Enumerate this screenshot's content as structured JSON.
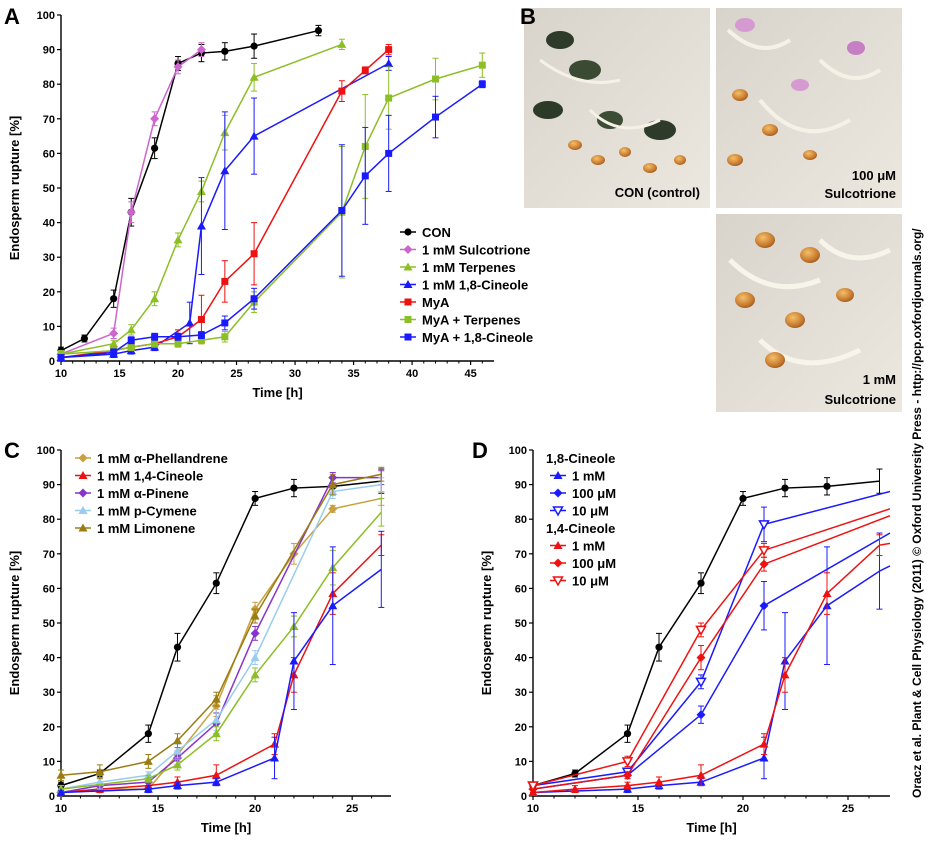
{
  "credit": "Oracz et al. Plant & Cell Physiology (2011) © Oxford University Press - http://pcp.oxfordjournals.org/",
  "panel_b": {
    "label": "B",
    "photos": [
      {
        "caption": "CON (control)"
      },
      {
        "caption": "100 μM",
        "caption2": "Sulcotrione"
      },
      {
        "caption": "1 mM",
        "caption2": "Sulcotrione"
      }
    ]
  },
  "chart_data": [
    {
      "panel": "A",
      "type": "line",
      "xlabel": "Time [h]",
      "ylabel": "Endosperm rupture [%]",
      "xlim": [
        10,
        47
      ],
      "ylim": [
        0,
        100
      ],
      "xticks": [
        10,
        15,
        20,
        25,
        30,
        35,
        40,
        45
      ],
      "yticks": [
        0,
        10,
        20,
        30,
        40,
        50,
        60,
        70,
        80,
        90,
        100
      ],
      "legend_position": "bottom-right",
      "series": [
        {
          "name": "CON",
          "color": "#000000",
          "marker": "circle",
          "x": [
            10,
            12,
            14.5,
            16,
            18,
            20,
            22,
            24,
            26.5,
            32
          ],
          "y": [
            3,
            6.5,
            18,
            43,
            61.5,
            86,
            89,
            89.5,
            91,
            95.5
          ],
          "err": [
            1,
            1,
            2.5,
            4,
            3,
            2,
            2.5,
            2.5,
            3.5,
            1.5
          ]
        },
        {
          "name": "1 mM Sulcotrione",
          "color": "#cc66cc",
          "marker": "diamond",
          "x": [
            10,
            14.5,
            16,
            18,
            20,
            22
          ],
          "y": [
            2,
            8,
            43,
            70,
            85,
            90
          ],
          "err": [
            1,
            1.5,
            3,
            2,
            2,
            2
          ]
        },
        {
          "name": "1 mM Terpenes",
          "color": "#8cbf26",
          "marker": "triangle",
          "x": [
            10,
            14.5,
            16,
            18,
            20,
            22,
            24,
            26.5,
            34
          ],
          "y": [
            2,
            5,
            9,
            18,
            35,
            49,
            66,
            82,
            91.5
          ],
          "err": [
            1,
            1,
            1.5,
            2,
            2,
            3,
            5,
            4,
            1.5
          ]
        },
        {
          "name": "1 mM 1,8-Cineole",
          "color": "#1a1aff",
          "marker": "triangle",
          "x": [
            10,
            14.5,
            16,
            18,
            21,
            22,
            24,
            26.5,
            38
          ],
          "y": [
            1,
            2,
            3,
            4,
            11,
            39,
            55,
            65,
            86
          ],
          "err": [
            0.5,
            1,
            1,
            1,
            6,
            14,
            17,
            11,
            2
          ]
        },
        {
          "name": "MyA",
          "color": "#ee1111",
          "marker": "square",
          "x": [
            10,
            14.5,
            16,
            18,
            20,
            22,
            24,
            26.5,
            34,
            36,
            38
          ],
          "y": [
            1,
            3,
            4,
            5,
            7,
            12,
            23,
            31,
            78,
            84,
            90
          ],
          "err": [
            0.5,
            1,
            1,
            1,
            2,
            7,
            6,
            9,
            3,
            1,
            1.5
          ]
        },
        {
          "name": "MyA + Terpenes",
          "color": "#8cbf26",
          "marker": "square",
          "x": [
            10,
            14.5,
            16,
            18,
            20,
            22,
            24,
            26.5,
            34,
            36,
            38,
            42,
            46
          ],
          "y": [
            2,
            3,
            4,
            5,
            5,
            6,
            7,
            17,
            43,
            62,
            76,
            81.5,
            85.5
          ],
          "err": [
            0.5,
            1,
            1,
            1,
            1,
            1,
            1.5,
            3,
            19,
            15,
            9,
            6,
            3.5
          ]
        },
        {
          "name": "MyA + 1,8-Cineole",
          "color": "#1a1aff",
          "marker": "square",
          "x": [
            10,
            14.5,
            16,
            18,
            20,
            22,
            24,
            26.5,
            34,
            36,
            38,
            42,
            46
          ],
          "y": [
            1,
            2.5,
            6,
            7,
            7,
            7.5,
            11,
            18,
            43.5,
            53.5,
            60,
            70.5,
            80
          ],
          "err": [
            0.5,
            1,
            1,
            1,
            1,
            1,
            2,
            3,
            19,
            14,
            11,
            6,
            1
          ]
        }
      ]
    },
    {
      "panel": "C",
      "type": "line",
      "xlabel": "Time [h]",
      "ylabel": "Endosperm rupture [%]",
      "xlim": [
        10,
        27
      ],
      "ylim": [
        0,
        100
      ],
      "xticks": [
        10,
        15,
        20,
        25
      ],
      "yticks": [
        0,
        10,
        20,
        30,
        40,
        50,
        60,
        70,
        80,
        90,
        100
      ],
      "legend_position": "top-left",
      "series": [
        {
          "name": "",
          "color": "#000000",
          "marker": "circle",
          "x": [
            10,
            12,
            14.5,
            16,
            18,
            20,
            22,
            24,
            26.5
          ],
          "y": [
            3,
            6.5,
            18,
            43,
            61.5,
            86,
            89,
            89.5,
            91
          ],
          "err": [
            1,
            1,
            2.5,
            4,
            3,
            2,
            2.5,
            2.5,
            3.5
          ]
        },
        {
          "name": "1 mM α-Phellandrene",
          "color": "#c9a03c",
          "marker": "diamond",
          "x": [
            10,
            12,
            14.5,
            16,
            18,
            20,
            22,
            24,
            26.5
          ],
          "y": [
            1,
            2,
            2,
            12,
            26,
            54,
            70,
            83,
            86
          ],
          "err": [
            0.5,
            1,
            1,
            2,
            3,
            2,
            3,
            1,
            2
          ]
        },
        {
          "name": "1 mM 1,4-Cineole",
          "color": "#ee1111",
          "marker": "triangle",
          "x": [
            10,
            12,
            14.5,
            16,
            18,
            21,
            22,
            24,
            26.5
          ],
          "y": [
            1,
            2,
            3,
            4,
            6,
            15,
            35,
            58.5,
            72.5
          ],
          "err": [
            0.5,
            1,
            1,
            1.5,
            3,
            3,
            5,
            6,
            3
          ]
        },
        {
          "name": "1 mM α-Pinene",
          "color": "#8833cc",
          "marker": "diamond",
          "x": [
            10,
            12,
            14.5,
            16,
            18,
            20,
            24,
            26.5
          ],
          "y": [
            1,
            3,
            4,
            11,
            21,
            47,
            92,
            92
          ],
          "err": [
            0.5,
            1,
            1,
            2,
            3,
            2,
            1.5,
            2
          ]
        },
        {
          "name": "1 mM p-Cymene",
          "color": "#99ccee",
          "marker": "triangle",
          "x": [
            10,
            12,
            14.5,
            16,
            18,
            20,
            24,
            26.5
          ],
          "y": [
            2,
            4,
            6,
            13,
            22,
            40,
            88,
            90
          ],
          "err": [
            1,
            2,
            1,
            2,
            3,
            2,
            2,
            2
          ]
        },
        {
          "name": "1 mM Limonene",
          "color": "#9a7d12",
          "marker": "triangle",
          "x": [
            10,
            12,
            14.5,
            16,
            18,
            20,
            24,
            26.5
          ],
          "y": [
            6,
            7,
            10,
            16,
            28,
            52,
            90,
            93
          ],
          "err": [
            1.5,
            2,
            2,
            2,
            2,
            2,
            3,
            2
          ]
        },
        {
          "name": "",
          "color": "#8cbf26",
          "marker": "triangle",
          "x": [
            10,
            14.5,
            16,
            18,
            20,
            22,
            24,
            26.5
          ],
          "y": [
            2,
            5,
            9,
            18,
            35,
            49,
            66,
            82
          ],
          "err": [
            1,
            1,
            1.5,
            2,
            2,
            3,
            5,
            4
          ]
        },
        {
          "name": "",
          "color": "#1a1aff",
          "marker": "triangle",
          "x": [
            10,
            14.5,
            16,
            18,
            21,
            22,
            24,
            26.5
          ],
          "y": [
            1,
            2,
            3,
            4,
            11,
            39,
            55,
            65.5
          ],
          "err": [
            0.5,
            1,
            1,
            1,
            6,
            14,
            17,
            11
          ]
        }
      ]
    },
    {
      "panel": "D",
      "type": "line",
      "xlabel": "Time [h]",
      "ylabel": "Endosperm rupture [%]",
      "xlim": [
        10,
        27
      ],
      "ylim": [
        0,
        100
      ],
      "xticks": [
        10,
        15,
        20,
        25
      ],
      "yticks": [
        0,
        10,
        20,
        30,
        40,
        50,
        60,
        70,
        80,
        90,
        100
      ],
      "legend_position": "top-left",
      "legend_groups": [
        "1,8-Cineole",
        "1,4-Cineole"
      ],
      "series": [
        {
          "name": "",
          "color": "#000000",
          "marker": "circle",
          "x": [
            10,
            12,
            14.5,
            16,
            18,
            20,
            22,
            24,
            26.5
          ],
          "y": [
            3,
            6.5,
            18,
            43,
            61.5,
            86,
            89,
            89.5,
            91
          ],
          "err": [
            1,
            1,
            2.5,
            4,
            3,
            2,
            2.5,
            2.5,
            3.5
          ]
        },
        {
          "name": "1 mM",
          "group": "1,8-Cineole",
          "color": "#1a1aff",
          "marker": "triangle",
          "x": [
            10,
            14.5,
            16,
            18,
            21,
            22,
            24,
            26.5,
            27
          ],
          "y": [
            1,
            2,
            3,
            4,
            11,
            39,
            55,
            65,
            66.5
          ],
          "err": [
            0.5,
            1,
            1,
            1,
            6,
            14,
            17,
            11,
            0
          ]
        },
        {
          "name": "100 μM",
          "group": "1,8-Cineole",
          "color": "#1a1aff",
          "marker": "diamond",
          "x": [
            10,
            14.5,
            18,
            21,
            27
          ],
          "y": [
            2,
            6,
            23.5,
            55,
            76
          ],
          "err": [
            1,
            1,
            2.5,
            7,
            0
          ]
        },
        {
          "name": "10 μM",
          "group": "1,8-Cineole",
          "color": "#1a1aff",
          "marker": "triangle-open",
          "x": [
            10,
            14.5,
            18,
            21,
            27
          ],
          "y": [
            3,
            7,
            33,
            78.5,
            88
          ],
          "err": [
            1,
            1,
            2,
            5,
            0
          ]
        },
        {
          "name": "1 mM",
          "group": "1,4-Cineole",
          "color": "#ee1111",
          "marker": "triangle",
          "x": [
            10,
            12,
            14.5,
            16,
            18,
            21,
            22,
            24,
            26.5,
            27
          ],
          "y": [
            1,
            2,
            3,
            4,
            6,
            15,
            35,
            58.5,
            72.5,
            73
          ],
          "err": [
            0.5,
            1,
            1,
            1.5,
            3,
            3,
            5,
            6,
            3,
            0
          ]
        },
        {
          "name": "100 μM",
          "group": "1,4-Cineole",
          "color": "#ee1111",
          "marker": "diamond",
          "x": [
            10,
            14.5,
            18,
            21,
            27
          ],
          "y": [
            2,
            6,
            40,
            67,
            81
          ],
          "err": [
            1,
            1,
            3.5,
            2,
            0
          ]
        },
        {
          "name": "10 μM",
          "group": "1,4-Cineole",
          "color": "#ee1111",
          "marker": "triangle-open",
          "x": [
            10,
            14.5,
            18,
            21,
            27
          ],
          "y": [
            3,
            10,
            48,
            71,
            83
          ],
          "err": [
            1,
            1.5,
            2,
            2,
            0
          ]
        }
      ]
    }
  ]
}
